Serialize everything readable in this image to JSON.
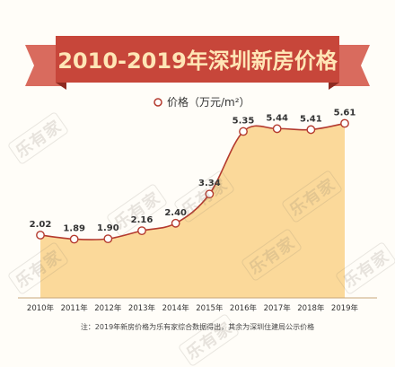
{
  "colors": {
    "banner": "#c7463a",
    "banner_light": "#d96b5e",
    "line": "#b43a2e",
    "area": "#fbd99a",
    "title_text": "#ffe6b6",
    "label_text": "#333333",
    "watermark": "#8a7e74"
  },
  "watermark": {
    "text": "乐有家"
  },
  "chart_data": {
    "type": "area",
    "title": "2010-2019年深圳新房价格",
    "legend_label": "价格（万元/m²）",
    "legend_position": "top-center",
    "categories": [
      "2010年",
      "2011年",
      "2012年",
      "2013年",
      "2014年",
      "2015年",
      "2016年",
      "2017年",
      "2018年",
      "2019年"
    ],
    "series": [
      {
        "name": "价格（万元/m²）",
        "values": [
          2.02,
          1.89,
          1.9,
          2.16,
          2.4,
          3.34,
          5.35,
          5.44,
          5.41,
          5.61
        ],
        "labels": [
          "2.02",
          "1.89",
          "1.90",
          "2.16",
          "2.40",
          "3.34",
          "5.35",
          "5.44",
          "5.41",
          "5.61"
        ]
      }
    ],
    "ylim": [
      0,
      7.5
    ],
    "grid": false,
    "smooth": true,
    "footnote": "注：2019年新房价格为乐有家综合数据得出，其余为深圳住建局公示价格"
  }
}
